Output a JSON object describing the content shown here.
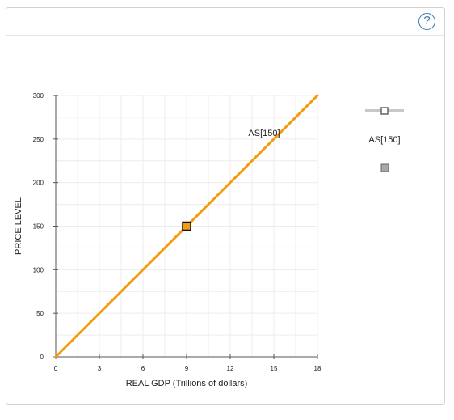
{
  "help": {
    "label": "?"
  },
  "chart_data": {
    "type": "line",
    "xlabel": "REAL GDP (Trillions of dollars)",
    "ylabel": "PRICE LEVEL",
    "xlim": [
      0,
      18
    ],
    "ylim": [
      0,
      300
    ],
    "xticks": [
      0,
      3,
      6,
      9,
      12,
      15,
      18
    ],
    "yticks": [
      0,
      50,
      100,
      150,
      200,
      250,
      300
    ],
    "grid": true,
    "series": [
      {
        "name": "AS[150]",
        "x": [
          0,
          18
        ],
        "y": [
          0,
          300
        ],
        "color": "#f39c12"
      }
    ],
    "annotations": [
      {
        "text": "AS[150]",
        "x": 15,
        "y": 250
      }
    ],
    "points": [
      {
        "x": 9,
        "y": 150,
        "fill": "#f39c12"
      }
    ],
    "legend": {
      "position": "right",
      "entries": [
        "AS[150]"
      ]
    }
  }
}
